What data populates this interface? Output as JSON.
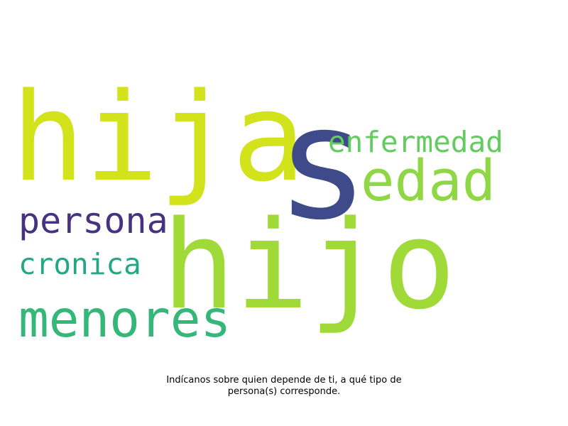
{
  "wordcloud": {
    "words": [
      {
        "text": "hija",
        "color": "#d2e21b"
      },
      {
        "text": "s",
        "color": "#3e4a89"
      },
      {
        "text": "enfermedad",
        "color": "#63cb5f"
      },
      {
        "text": "edad",
        "color": "#8fd744"
      },
      {
        "text": "persona",
        "color": "#46327e"
      },
      {
        "text": "hijo",
        "color": "#a0da39"
      },
      {
        "text": "cronica",
        "color": "#22a884"
      },
      {
        "text": "menores",
        "color": "#35b779"
      }
    ]
  },
  "caption": {
    "line1": "Indícanos sobre quien depende de ti, a qué tipo de",
    "line2": "persona(s) corresponde."
  }
}
